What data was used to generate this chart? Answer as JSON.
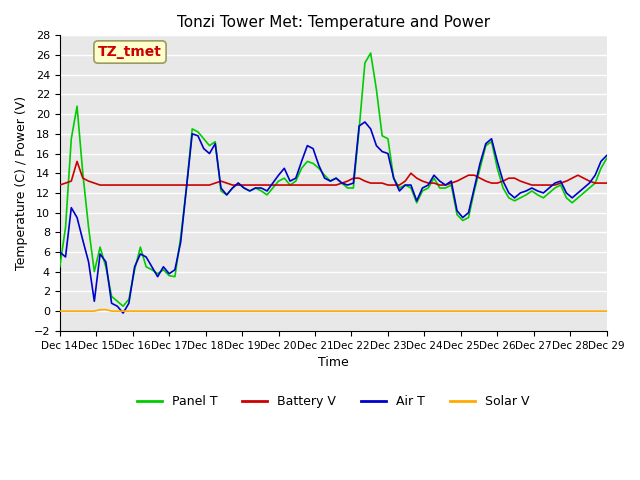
{
  "title": "Tonzi Tower Met: Temperature and Power",
  "xlabel": "Time",
  "ylabel": "Temperature (C) / Power (V)",
  "ylim": [
    -2,
    28
  ],
  "yticks": [
    -2,
    0,
    2,
    4,
    6,
    8,
    10,
    12,
    14,
    16,
    18,
    20,
    22,
    24,
    26,
    28
  ],
  "legend_labels": [
    "Panel T",
    "Battery V",
    "Air T",
    "Solar V"
  ],
  "legend_colors": [
    "#00cc00",
    "#cc0000",
    "#0000cc",
    "#ffaa00"
  ],
  "annotation_text": "TZ_tmet",
  "annotation_color": "#cc0000",
  "annotation_bg": "#ffffcc",
  "bg_color": "#e8e8e8",
  "grid_color": "#ffffff",
  "x_tick_labels": [
    "Dec 14",
    "Dec 15",
    "Dec 16",
    "Dec 17",
    "Dec 18",
    "Dec 19",
    "Dec 20",
    "Dec 21",
    "Dec 22",
    "Dec 23",
    "Dec 24",
    "Dec 25",
    "Dec 26",
    "Dec 27",
    "Dec 28",
    "Dec 29"
  ],
  "panel_T": [
    4.5,
    8.5,
    17.5,
    20.8,
    14.0,
    8.5,
    4.0,
    6.5,
    4.5,
    1.5,
    1.0,
    0.5,
    1.2,
    4.2,
    6.5,
    4.5,
    4.2,
    3.8,
    4.2,
    3.6,
    3.5,
    7.5,
    12.5,
    18.5,
    18.2,
    17.5,
    16.8,
    17.2,
    12.2,
    11.8,
    12.5,
    13.0,
    12.5,
    12.2,
    12.5,
    12.2,
    11.8,
    12.5,
    13.2,
    13.5,
    12.8,
    13.2,
    14.5,
    15.2,
    15.0,
    14.5,
    13.8,
    13.2,
    13.5,
    13.0,
    12.5,
    12.5,
    18.5,
    25.2,
    26.2,
    22.5,
    17.8,
    17.5,
    13.5,
    12.5,
    12.8,
    12.5,
    11.0,
    12.2,
    12.5,
    13.5,
    12.5,
    12.5,
    12.8,
    9.8,
    9.2,
    9.5,
    12.2,
    14.5,
    16.8,
    17.2,
    14.5,
    12.5,
    11.5,
    11.2,
    11.5,
    11.8,
    12.2,
    11.8,
    11.5,
    12.0,
    12.5,
    12.8,
    11.5,
    11.0,
    11.5,
    12.0,
    12.5,
    13.0,
    14.5,
    15.5
  ],
  "battery_V": [
    12.8,
    13.0,
    13.2,
    15.2,
    13.5,
    13.2,
    13.0,
    12.8,
    12.8,
    12.8,
    12.8,
    12.8,
    12.8,
    12.8,
    12.8,
    12.8,
    12.8,
    12.8,
    12.8,
    12.8,
    12.8,
    12.8,
    12.8,
    12.8,
    12.8,
    12.8,
    12.8,
    13.0,
    13.2,
    13.0,
    12.8,
    12.8,
    12.8,
    12.8,
    12.8,
    12.8,
    12.8,
    12.8,
    12.8,
    12.8,
    12.8,
    12.8,
    12.8,
    12.8,
    12.8,
    12.8,
    12.8,
    12.8,
    12.8,
    13.0,
    13.2,
    13.5,
    13.5,
    13.2,
    13.0,
    13.0,
    13.0,
    12.8,
    12.8,
    12.8,
    13.2,
    14.0,
    13.5,
    13.2,
    13.0,
    13.0,
    12.8,
    12.8,
    13.0,
    13.2,
    13.5,
    13.8,
    13.8,
    13.5,
    13.2,
    13.0,
    13.0,
    13.2,
    13.5,
    13.5,
    13.2,
    13.0,
    12.8,
    12.8,
    12.8,
    12.8,
    12.8,
    13.0,
    13.2,
    13.5,
    13.8,
    13.5,
    13.2,
    13.0,
    13.0,
    13.0
  ],
  "air_T": [
    6.0,
    5.5,
    10.5,
    9.5,
    7.2,
    5.0,
    1.0,
    5.8,
    5.0,
    0.8,
    0.5,
    -0.2,
    0.8,
    4.5,
    5.8,
    5.5,
    4.5,
    3.5,
    4.5,
    3.8,
    4.2,
    7.0,
    12.5,
    18.0,
    17.8,
    16.5,
    16.0,
    17.0,
    12.5,
    11.8,
    12.5,
    13.0,
    12.5,
    12.2,
    12.5,
    12.5,
    12.2,
    13.0,
    13.8,
    14.5,
    13.2,
    13.5,
    15.2,
    16.8,
    16.5,
    14.8,
    13.5,
    13.2,
    13.5,
    13.0,
    12.8,
    13.0,
    18.8,
    19.2,
    18.5,
    16.8,
    16.2,
    16.0,
    13.5,
    12.2,
    12.8,
    12.8,
    11.2,
    12.5,
    12.8,
    13.8,
    13.2,
    12.8,
    13.2,
    10.2,
    9.5,
    10.0,
    12.5,
    15.0,
    17.0,
    17.5,
    15.2,
    13.2,
    12.0,
    11.5,
    12.0,
    12.2,
    12.5,
    12.2,
    12.0,
    12.5,
    13.0,
    13.2,
    12.0,
    11.5,
    12.0,
    12.5,
    13.0,
    13.8,
    15.2,
    15.8
  ],
  "solar_V": [
    0.0,
    0.0,
    0.0,
    0.0,
    0.0,
    0.0,
    0.0,
    0.15,
    0.15,
    0.0,
    0.0,
    0.0,
    0.0,
    0.0,
    0.0,
    0.0,
    0.0,
    0.0,
    0.0,
    0.0,
    0.0,
    0.0,
    0.0,
    0.0,
    0.0,
    0.0,
    0.0,
    0.0,
    0.0,
    0.0,
    0.0,
    0.0,
    0.0,
    0.0,
    0.0,
    0.0,
    0.0,
    0.0,
    0.0,
    0.0,
    0.0,
    0.0,
    0.0,
    0.0,
    0.0,
    0.0,
    0.0,
    0.0,
    0.0,
    0.0,
    0.0,
    0.0,
    0.0,
    0.0,
    0.0,
    0.0,
    0.0,
    0.0,
    0.0,
    0.0,
    0.0,
    0.0,
    0.0,
    0.0,
    0.0,
    0.0,
    0.0,
    0.0,
    0.0,
    0.0,
    0.0,
    0.0,
    0.0,
    0.0,
    0.0,
    0.0,
    0.0,
    0.0,
    0.0,
    0.0,
    0.0,
    0.0,
    0.0,
    0.0,
    0.0,
    0.0,
    0.0,
    0.0,
    0.0,
    0.0,
    0.0,
    0.0,
    0.0,
    0.0,
    0.0,
    0.0
  ]
}
